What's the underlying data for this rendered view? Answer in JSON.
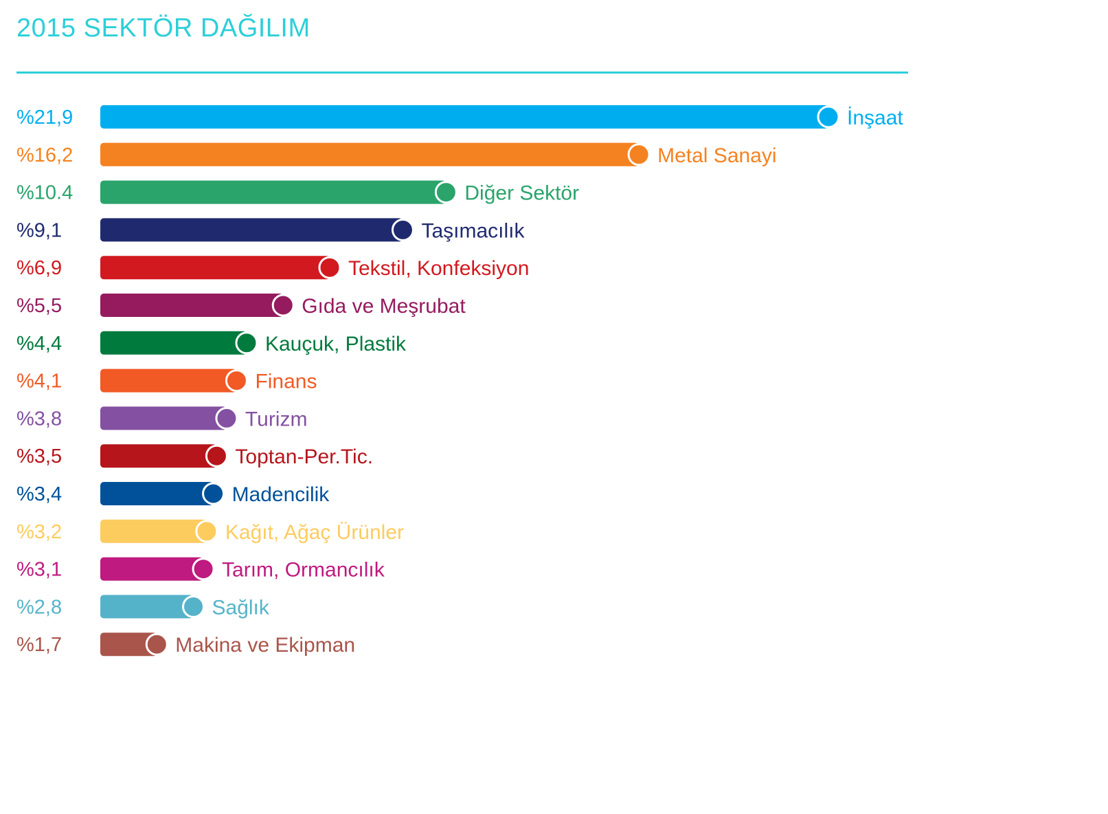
{
  "title": "2015 SEKTÖR DAĞILIM",
  "accent_color": "#2ccfd9",
  "chart_data": {
    "type": "bar",
    "orientation": "horizontal",
    "title": "2015 SEKTÖR DAĞILIM",
    "xlabel": "",
    "ylabel": "",
    "unit": "%",
    "grid": false,
    "legend": "none",
    "bars": [
      {
        "category": "İnşaat",
        "label": "%21,9",
        "value": 21.9,
        "color": "#00aeef"
      },
      {
        "category": "Metal Sanayi",
        "label": "%16,2",
        "value": 16.2,
        "color": "#f58220"
      },
      {
        "category": "Diğer Sektör",
        "label": "%10.4",
        "value": 10.4,
        "color": "#2aa46b"
      },
      {
        "category": "Taşımacılık",
        "label": "%9,1",
        "value": 9.1,
        "color": "#1f2a6e"
      },
      {
        "category": "Tekstil, Konfeksiyon",
        "label": "%6,9",
        "value": 6.9,
        "color": "#d2191f"
      },
      {
        "category": "Gıda ve Meşrubat",
        "label": "%5,5",
        "value": 5.5,
        "color": "#951b5e"
      },
      {
        "category": "Kauçuk, Plastik",
        "label": "%4,4",
        "value": 4.4,
        "color": "#007a3d"
      },
      {
        "category": "Finans",
        "label": "%4,1",
        "value": 4.1,
        "color": "#f15a24"
      },
      {
        "category": "Turizm",
        "label": "%3,8",
        "value": 3.8,
        "color": "#8450a1"
      },
      {
        "category": "Toptan-Per.Tic.",
        "label": "%3,5",
        "value": 3.5,
        "color": "#b5151b"
      },
      {
        "category": "Madencilik",
        "label": "%3,4",
        "value": 3.4,
        "color": "#00519a"
      },
      {
        "category": "Kağıt, Ağaç Ürünler",
        "label": "%3,2",
        "value": 3.2,
        "color": "#fdcc5f"
      },
      {
        "category": "Tarım, Ormancılık",
        "label": "%3,1",
        "value": 3.1,
        "color": "#bf1a7f"
      },
      {
        "category": "Sağlık",
        "label": "%2,8",
        "value": 2.8,
        "color": "#55b3c9"
      },
      {
        "category": "Makina ve Ekipman",
        "label": "%1,7",
        "value": 1.7,
        "color": "#a9554b"
      }
    ]
  }
}
